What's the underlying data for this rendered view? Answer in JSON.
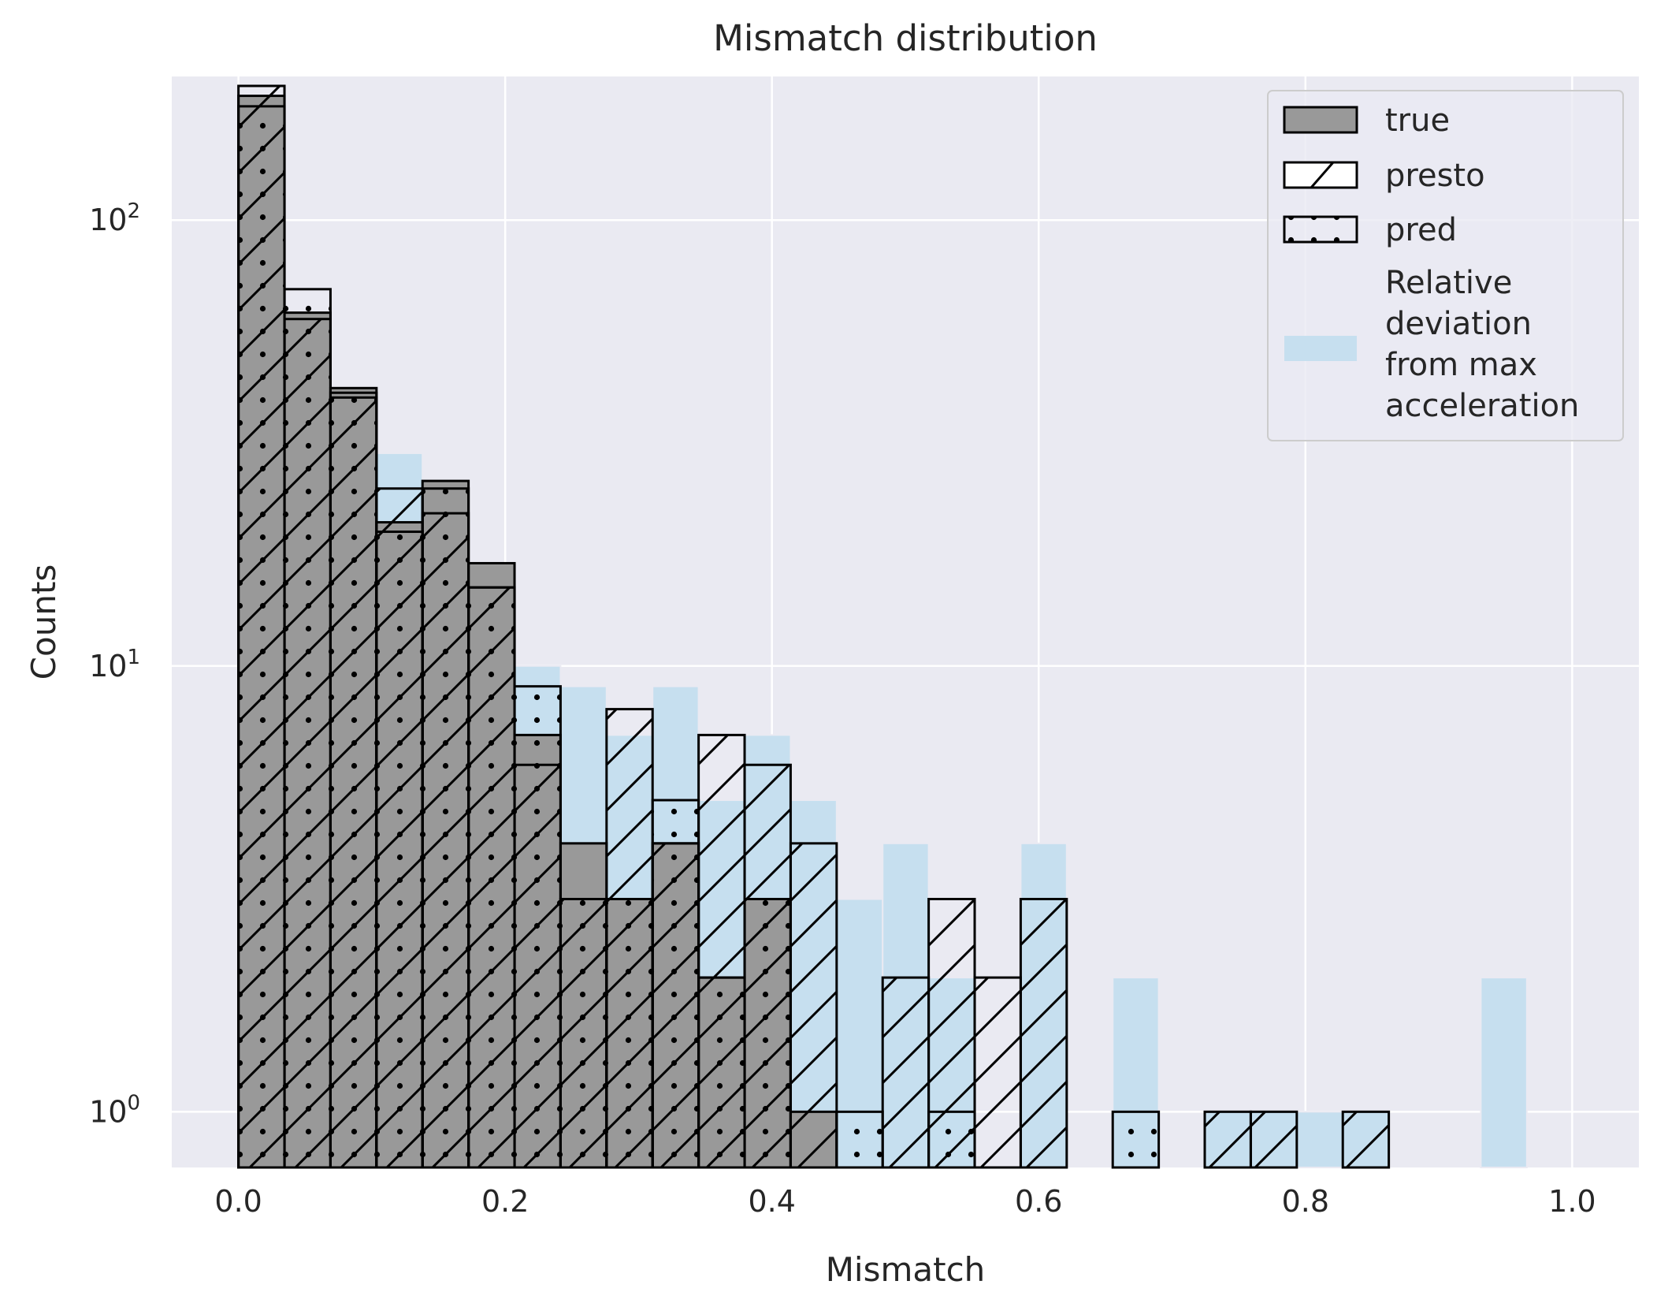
{
  "chart_data": {
    "type": "bar",
    "title": "Mismatch distribution",
    "xlabel": "Mismatch",
    "ylabel": "Counts",
    "y_scale": "log",
    "xlim": [
      -0.05,
      1.05
    ],
    "ylim": [
      0.75,
      210
    ],
    "x_ticks": [
      0.0,
      0.2,
      0.4,
      0.6,
      0.8,
      1.0
    ],
    "x_tick_labels": [
      "0.0",
      "0.2",
      "0.4",
      "0.6",
      "0.8",
      "1.0"
    ],
    "y_ticks": [
      1,
      10,
      100
    ],
    "y_tick_labels": [
      {
        "base": "10",
        "exp": "0"
      },
      {
        "base": "10",
        "exp": "1"
      },
      {
        "base": "10",
        "exp": "2"
      }
    ],
    "grid": true,
    "legend_position": "top-right",
    "bin_width": 0.0345,
    "series": [
      {
        "name": "Relative\ndeviation\nfrom max\nacceleration",
        "style": "filled",
        "color": "#c6dfef",
        "x_start": 0.0,
        "counts": [
          0,
          0,
          0,
          30,
          25,
          14,
          10,
          9,
          7,
          9,
          5,
          7,
          5,
          3,
          4,
          2,
          0,
          4,
          0,
          2,
          0,
          1,
          1,
          1,
          1,
          0,
          0,
          2,
          0,
          0
        ],
        "bin_width": 0.0345
      },
      {
        "name": "true",
        "style": "gray",
        "color": "#999999",
        "x_start": 0.0,
        "bin_width": 0.0345,
        "counts": [
          190,
          62,
          42,
          21,
          26,
          17,
          7,
          4,
          3,
          4,
          2,
          3,
          1,
          0,
          0,
          0,
          0,
          0,
          0,
          0,
          0,
          0,
          0,
          0,
          0,
          0,
          0,
          0,
          0,
          0
        ]
      },
      {
        "name": "presto",
        "style": "hatch",
        "x_start": 0.0,
        "bin_width": 0.0345,
        "counts": [
          200,
          60,
          40,
          25,
          22,
          15,
          6,
          3,
          8,
          4,
          7,
          6,
          4,
          0,
          2,
          3,
          2,
          3,
          0,
          0,
          0,
          1,
          1,
          0,
          1,
          0,
          0,
          0,
          0,
          0
        ]
      },
      {
        "name": "pred",
        "style": "dots",
        "x_start": 0.0,
        "bin_width": 0.0345,
        "counts": [
          180,
          70,
          41,
          20,
          25,
          15,
          9,
          3,
          3,
          5,
          2,
          3,
          0,
          1,
          0,
          1,
          0,
          0,
          0,
          1,
          0,
          0,
          0,
          0,
          0,
          0,
          0,
          0,
          0,
          0
        ]
      }
    ],
    "legend_order": [
      "true",
      "presto",
      "pred",
      "Relative\ndeviation\nfrom max\nacceleration"
    ]
  }
}
